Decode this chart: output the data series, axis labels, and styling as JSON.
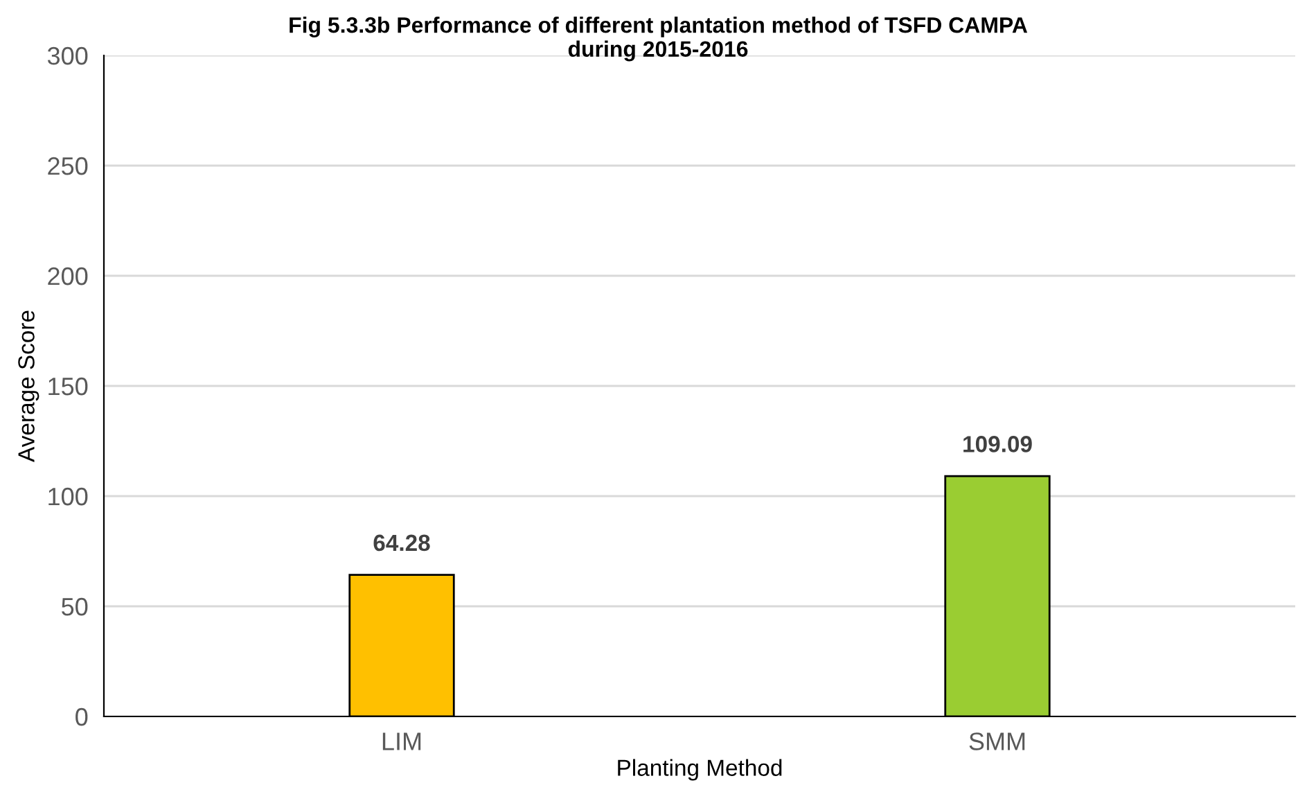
{
  "chart_data": {
    "type": "bar",
    "title": "Fig 5.3.3b Performance of different plantation method of TSFD CAMPA\nduring 2015-2016",
    "xlabel": "Planting Method",
    "ylabel": "Average Score",
    "categories": [
      "LIM",
      "SMM"
    ],
    "values": [
      64.28,
      109.09
    ],
    "colors": [
      "#ffc000",
      "#9acd32"
    ],
    "ylim": [
      0,
      300
    ],
    "yticks": [
      0,
      50,
      100,
      150,
      200,
      250,
      300
    ],
    "grid": "y",
    "data_labels": true,
    "legend": false
  }
}
